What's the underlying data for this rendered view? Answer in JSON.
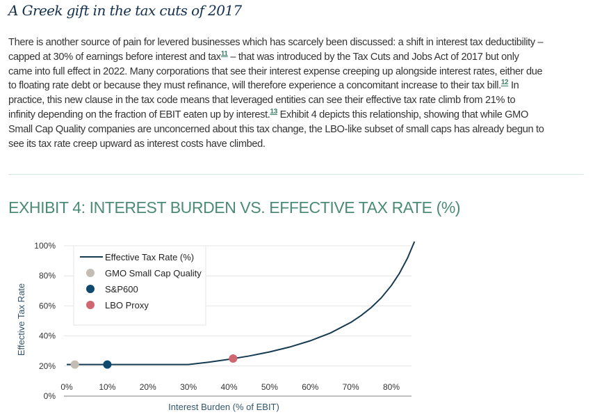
{
  "article": {
    "title": "A Greek gift in the tax cuts of 2017",
    "lines": [
      [
        "There is another source of pain for levered businesses which has scarcely been discussed: a shift in interest tax deductibility –"
      ],
      [
        "capped at 30% of earnings before interest and tax",
        "11",
        " – that was introduced by the Tax Cuts and Jobs Act of 2017 but only"
      ],
      [
        "came into full effect in 2022. Many corporations that see their interest expense creeping up alongside interest rates, either due"
      ],
      [
        "to floating rate debt or because they must refinance, will therefore experience a concomitant increase to their tax bill.",
        "12",
        " In"
      ],
      [
        "practice, this new clause in the tax code means that leveraged entities can see their effective tax rate climb from 21% to"
      ],
      [
        "infinity depending on the fraction of EBIT eaten up by interest.",
        "13",
        " Exhibit 4 depicts this relationship, showing that while GMO"
      ],
      [
        "Small Cap Quality companies are unconcerned about this tax change, the LBO-like subset of small caps has already begun to"
      ],
      [
        "see its tax rate creep upward as interest costs have climbed."
      ]
    ]
  },
  "exhibit_title": "EXHIBIT 4: INTEREST BURDEN VS. EFFECTIVE TAX RATE (%)",
  "chart_data": {
    "type": "line",
    "xlabel": "Interest Burden (% of EBIT)",
    "ylabel": "Effective Tax Rate",
    "xlim": [
      0,
      85.7
    ],
    "ylim": [
      0,
      100
    ],
    "xticks": [
      "0%",
      "10%",
      "20%",
      "30%",
      "40%",
      "50%",
      "60%",
      "70%",
      "80%"
    ],
    "xtick_values": [
      0,
      10,
      20,
      30,
      40,
      50,
      60,
      70,
      80
    ],
    "yticks": [
      "0%",
      "20%",
      "40%",
      "60%",
      "80%",
      "100%"
    ],
    "ytick_values": [
      0,
      20,
      40,
      60,
      80,
      100
    ],
    "grid": "horizontal",
    "legend_position": "top-left",
    "series": [
      {
        "name": "Effective Tax Rate (%)",
        "kind": "line",
        "color": "#163a52",
        "x": [
          0,
          5,
          10,
          15,
          20,
          25,
          30,
          35,
          40,
          45,
          50,
          55,
          60,
          65,
          70,
          72.5,
          75,
          77.5,
          80,
          82,
          84,
          85.7
        ],
        "y": [
          21,
          21,
          21,
          21,
          21,
          21,
          21,
          22.6,
          24.5,
          26.7,
          29.4,
          32.7,
          36.8,
          42,
          49,
          53.5,
          58.8,
          65.3,
          73.5,
          81.7,
          91.9,
          102.8
        ]
      },
      {
        "name": "GMO Small Cap Quality",
        "kind": "point",
        "color": "#c4bdb4",
        "x": [
          2
        ],
        "y": [
          21
        ]
      },
      {
        "name": "S&P600",
        "kind": "point",
        "color": "#0f4a6e",
        "x": [
          10
        ],
        "y": [
          21
        ]
      },
      {
        "name": "LBO Proxy",
        "kind": "point",
        "color": "#d0666f",
        "x": [
          41
        ],
        "y": [
          25
        ]
      }
    ]
  }
}
